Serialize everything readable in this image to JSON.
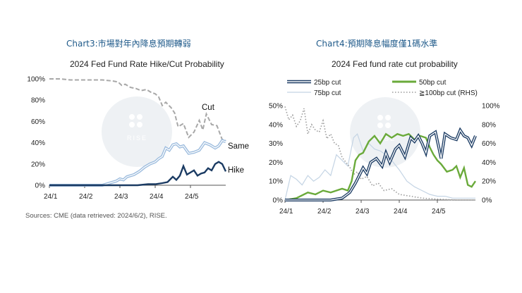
{
  "chart_data": [
    {
      "type": "line",
      "header": "Chart3:市場對年內降息預期轉弱",
      "title": "2024 Fed Fund Rate Hike/Cut Probability",
      "source": "Sources: CME (data retrieved: 2024/6/2), RISE.",
      "categories": [
        "24/1",
        "24/2",
        "24/3",
        "24/4",
        "24/5"
      ],
      "y_ticks": [
        "0%",
        "20%",
        "40%",
        "60%",
        "80%",
        "100%"
      ],
      "ylim": [
        0,
        100
      ],
      "watermark": "RISE",
      "colors": {
        "cut": "#a8a8a8",
        "same": "#9bbbdd",
        "hike": "#1b3b63"
      },
      "series": [
        {
          "name": "Cut",
          "style": "dashed",
          "x": [
            0,
            0.3,
            0.6,
            0.9,
            1.2,
            1.5,
            1.8,
            1.95,
            2.05,
            2.15,
            2.3,
            2.45,
            2.6,
            2.75,
            2.9,
            3.0,
            3.1,
            3.2,
            3.3,
            3.45,
            3.55,
            3.65,
            3.8,
            3.95,
            4.1,
            4.25,
            4.35,
            4.45,
            4.6,
            4.75,
            4.9,
            5.0
          ],
          "values": [
            100,
            100,
            99,
            99,
            99,
            99,
            98,
            97,
            94,
            95,
            92,
            91,
            89,
            90,
            87,
            86,
            83,
            75,
            78,
            73,
            68,
            55,
            58,
            45,
            50,
            61,
            52,
            67,
            57,
            56,
            43,
            42
          ]
        },
        {
          "name": "Same",
          "style": "double",
          "x": [
            0,
            0.3,
            0.6,
            0.9,
            1.2,
            1.5,
            1.6,
            1.7,
            1.8,
            1.9,
            2.0,
            2.1,
            2.2,
            2.4,
            2.55,
            2.7,
            2.85,
            3.0,
            3.1,
            3.2,
            3.3,
            3.4,
            3.5,
            3.6,
            3.7,
            3.8,
            3.95,
            4.1,
            4.25,
            4.4,
            4.55,
            4.7,
            4.8,
            4.9,
            5.0
          ],
          "values": [
            0,
            0,
            0,
            0,
            0,
            0,
            1,
            2,
            3,
            4,
            6,
            5,
            8,
            10,
            13,
            17,
            20,
            22,
            25,
            27,
            35,
            33,
            38,
            39,
            36,
            37,
            30,
            31,
            33,
            40,
            38,
            35,
            37,
            42,
            41
          ]
        },
        {
          "name": "Hike",
          "style": "solid",
          "x": [
            0,
            0.5,
            1.0,
            1.5,
            2.0,
            2.5,
            2.8,
            3.0,
            3.2,
            3.35,
            3.5,
            3.6,
            3.7,
            3.8,
            3.9,
            4.0,
            4.1,
            4.2,
            4.3,
            4.4,
            4.5,
            4.6,
            4.7,
            4.8,
            4.9,
            5.0
          ],
          "values": [
            0,
            0,
            0,
            0,
            0,
            0,
            1,
            1,
            2,
            3,
            8,
            5,
            9,
            18,
            10,
            12,
            14,
            9,
            11,
            12,
            16,
            14,
            20,
            22,
            20,
            13
          ]
        }
      ],
      "end_labels": {
        "cut": "Cut",
        "same": "Same",
        "hike": "Hike"
      }
    },
    {
      "type": "line",
      "header": "Chart4:預期降息幅度僅1碼水準",
      "title": "2024 Fed fund rate cut probability",
      "categories": [
        "24/1",
        "24/2",
        "24/3",
        "24/4",
        "24/5"
      ],
      "y_ticks_left": [
        "0%",
        "10%",
        "20%",
        "30%",
        "40%",
        "50%"
      ],
      "y_ticks_right": [
        "0%",
        "20%",
        "40%",
        "60%",
        "80%",
        "100%"
      ],
      "ylim_left": [
        0,
        50
      ],
      "ylim_right": [
        0,
        100
      ],
      "watermark": "RISE",
      "legend": {
        "s25": "25bp cut",
        "s50": "50bp cut",
        "s75": "75bp cut",
        "s100": "≧100bp cut (RHS)"
      },
      "colors": {
        "s25": "#1b3b63",
        "s50": "#6aaa3a",
        "s75": "#c4d4e4",
        "s100": "#9a9a9a"
      },
      "series": [
        {
          "name": "25bp cut",
          "axis": "left",
          "style": "double",
          "x": [
            0,
            0.4,
            0.8,
            1.2,
            1.5,
            1.7,
            1.85,
            1.95,
            2.05,
            2.15,
            2.25,
            2.4,
            2.55,
            2.65,
            2.75,
            2.9,
            3.0,
            3.15,
            3.3,
            3.4,
            3.5,
            3.6,
            3.7,
            3.8,
            3.95,
            4.1,
            4.2,
            4.35,
            4.5,
            4.6,
            4.7,
            4.8,
            4.9,
            5.0
          ],
          "values": [
            0,
            0,
            0,
            0,
            1,
            4,
            9,
            13,
            17,
            14,
            20,
            22,
            18,
            25,
            20,
            27,
            29,
            23,
            33,
            31,
            34,
            30,
            25,
            34,
            36,
            22,
            35,
            33,
            32,
            37,
            34,
            33,
            29,
            34
          ]
        },
        {
          "name": "50bp cut",
          "axis": "left",
          "style": "solid",
          "x": [
            0,
            0.3,
            0.6,
            0.8,
            1.0,
            1.2,
            1.5,
            1.65,
            1.75,
            1.85,
            1.95,
            2.05,
            2.2,
            2.35,
            2.5,
            2.65,
            2.8,
            2.95,
            3.1,
            3.25,
            3.4,
            3.55,
            3.7,
            3.8,
            3.9,
            4.0,
            4.1,
            4.25,
            4.4,
            4.5,
            4.6,
            4.7,
            4.8,
            4.9,
            5.0
          ],
          "values": [
            0,
            1,
            4,
            3,
            5,
            4,
            6,
            5,
            10,
            21,
            24,
            25,
            31,
            34,
            30,
            35,
            33,
            35,
            34,
            35,
            32,
            34,
            33,
            28,
            24,
            21,
            19,
            15,
            16,
            18,
            12,
            17,
            8,
            7,
            10
          ]
        },
        {
          "name": "75bp cut",
          "axis": "left",
          "style": "thin",
          "x": [
            0,
            0.15,
            0.3,
            0.45,
            0.6,
            0.75,
            0.9,
            1.05,
            1.2,
            1.35,
            1.5,
            1.65,
            1.8,
            1.9,
            2.05,
            2.2,
            2.35,
            2.5,
            2.65,
            2.8,
            3.0,
            3.2,
            3.4,
            3.6,
            3.8,
            4.0,
            4.2,
            4.4,
            4.6,
            4.8,
            5.0
          ],
          "values": [
            0,
            13,
            11,
            8,
            13,
            10,
            12,
            16,
            13,
            24,
            21,
            18,
            33,
            35,
            26,
            30,
            27,
            26,
            24,
            21,
            16,
            10,
            7,
            5,
            3,
            2,
            2,
            1,
            1,
            1,
            1
          ]
        },
        {
          "name": "≧100bp cut (RHS)",
          "axis": "right",
          "style": "dotted",
          "x": [
            0,
            0.1,
            0.2,
            0.3,
            0.4,
            0.5,
            0.6,
            0.7,
            0.8,
            0.9,
            1.0,
            1.1,
            1.2,
            1.3,
            1.4,
            1.5,
            1.6,
            1.7,
            1.8,
            1.9,
            2.0,
            2.15,
            2.3,
            2.45,
            2.6,
            2.8,
            3.0,
            3.3,
            3.6,
            4.0,
            4.5,
            5.0
          ],
          "values": [
            99,
            85,
            90,
            78,
            84,
            97,
            70,
            80,
            74,
            72,
            84,
            65,
            70,
            60,
            58,
            45,
            40,
            35,
            27,
            30,
            22,
            25,
            15,
            18,
            10,
            12,
            6,
            4,
            2,
            1,
            0,
            0
          ]
        }
      ]
    }
  ]
}
